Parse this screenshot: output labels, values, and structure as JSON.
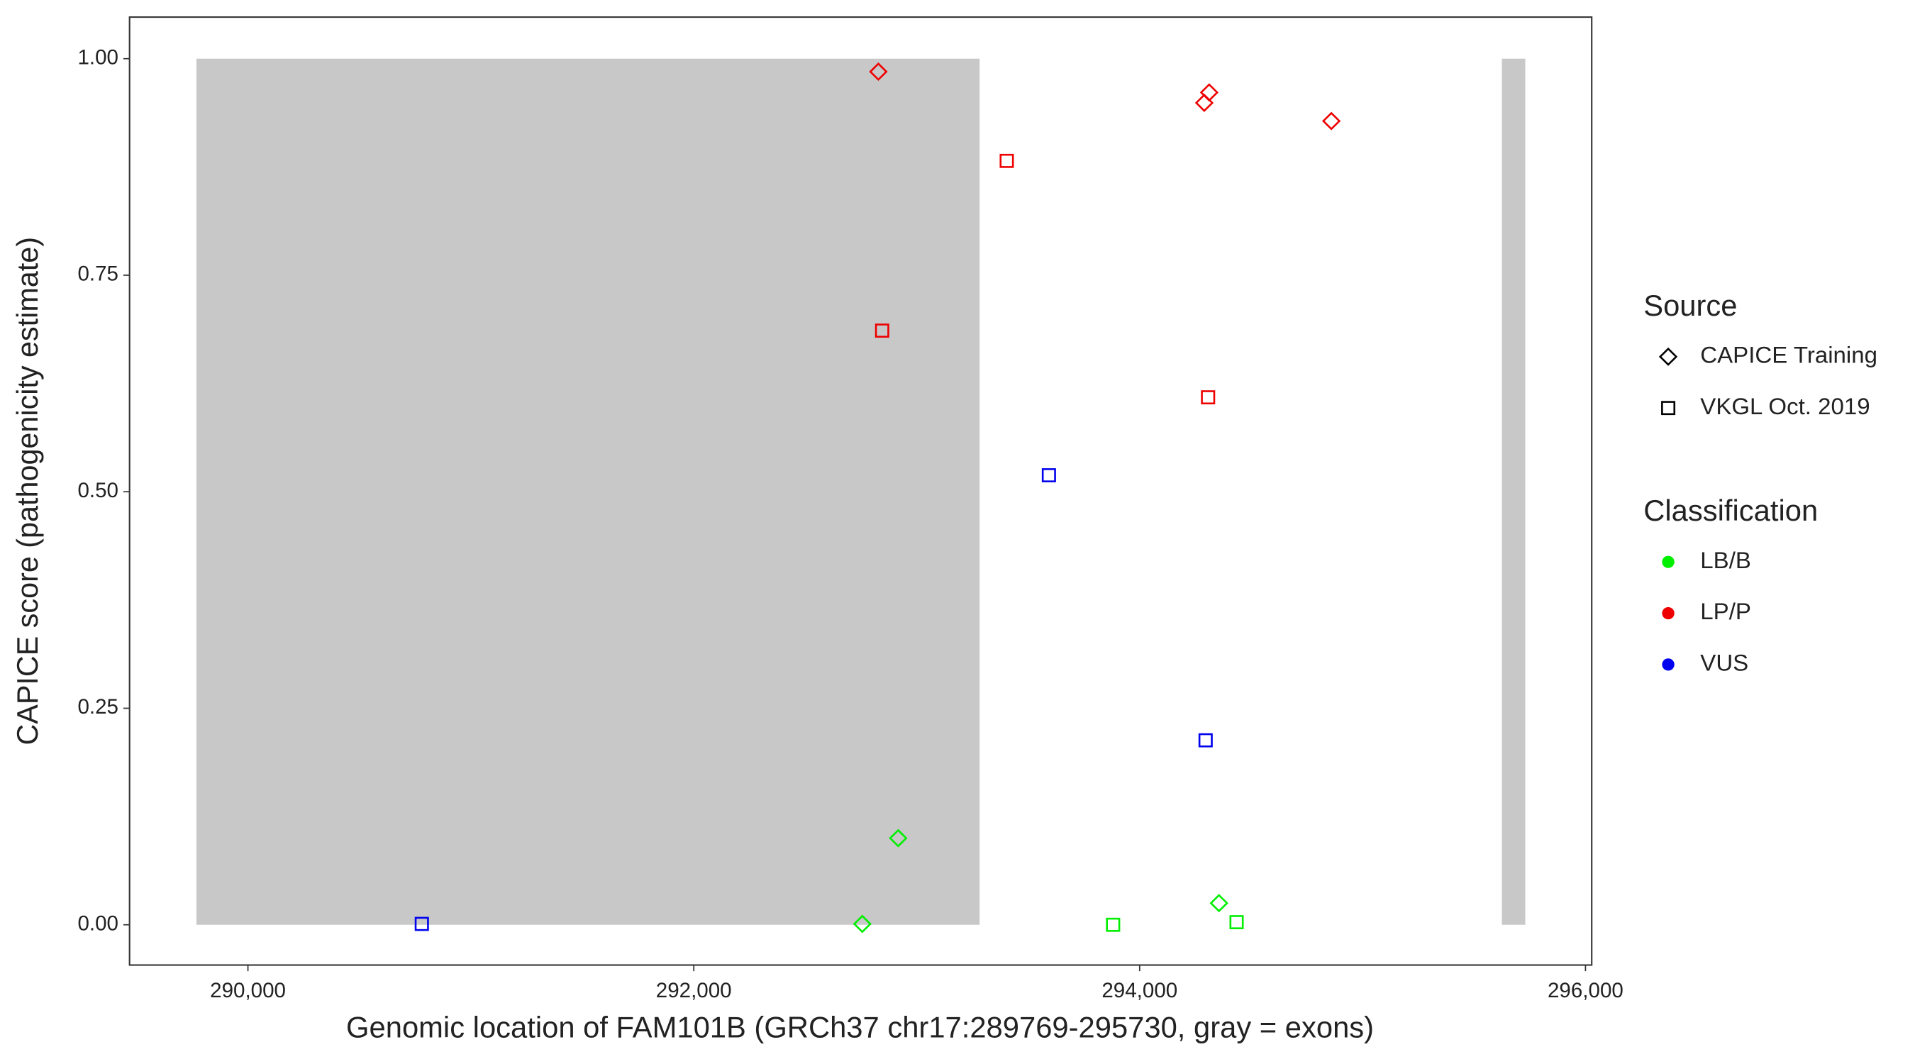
{
  "chart_data": {
    "type": "scatter",
    "x_label": "Genomic location of FAM101B (GRCh37 chr17:289769-295730, gray = exons)",
    "y_label": "CAPICE score (pathogenicity estimate)",
    "xlim": [
      289469,
      296028
    ],
    "ylim": [
      -0.0465,
      1.048
    ],
    "xticks": [
      {
        "value": 290000,
        "label": "290,000"
      },
      {
        "value": 292000,
        "label": "292,000"
      },
      {
        "value": 294000,
        "label": "294,000"
      },
      {
        "value": 296000,
        "label": "296,000"
      }
    ],
    "yticks": [
      {
        "value": 0,
        "label": "0.00"
      },
      {
        "value": 0.25,
        "label": "0.25"
      },
      {
        "value": 0.5,
        "label": "0.50"
      },
      {
        "value": 0.75,
        "label": "0.75"
      },
      {
        "value": 1,
        "label": "1.00"
      }
    ],
    "exon_color": "#c8c8c8",
    "exons": [
      [
        289769,
        293282
      ],
      [
        295625,
        295730
      ]
    ],
    "exon_ylim": [
      0,
      1
    ],
    "shape_legend": {
      "title": "Source",
      "entries": [
        {
          "label": "CAPICE Training",
          "shape": "diamond"
        },
        {
          "label": "VKGL Oct. 2019",
          "shape": "square"
        }
      ]
    },
    "color_legend": {
      "title": "Classification",
      "entries": [
        {
          "label": "LB/B",
          "color": "#00ee00"
        },
        {
          "label": "LP/P",
          "color": "#ee0000"
        },
        {
          "label": "VUS",
          "color": "#0000ee"
        }
      ]
    },
    "series": [
      {
        "source": "CAPICE Training",
        "classification": "LB/B",
        "x": [
          292917,
          292756,
          294356
        ],
        "values": [
          0.1,
          0.001,
          0.025
        ]
      },
      {
        "source": "CAPICE Training",
        "classification": "LP/P",
        "x": [
          292828,
          294290,
          294312,
          294860
        ],
        "values": [
          0.985,
          0.949,
          0.961,
          0.928
        ]
      },
      {
        "source": "VKGL Oct. 2019",
        "classification": "LB/B",
        "x": [
          293881,
          294435
        ],
        "values": [
          0.0,
          0.003
        ]
      },
      {
        "source": "VKGL Oct. 2019",
        "classification": "LP/P",
        "x": [
          293404,
          292845,
          294307
        ],
        "values": [
          0.882,
          0.686,
          0.609
        ]
      },
      {
        "source": "VKGL Oct. 2019",
        "classification": "VUS",
        "x": [
          293593,
          294296,
          290780
        ],
        "values": [
          0.519,
          0.213,
          0.001
        ]
      }
    ]
  }
}
